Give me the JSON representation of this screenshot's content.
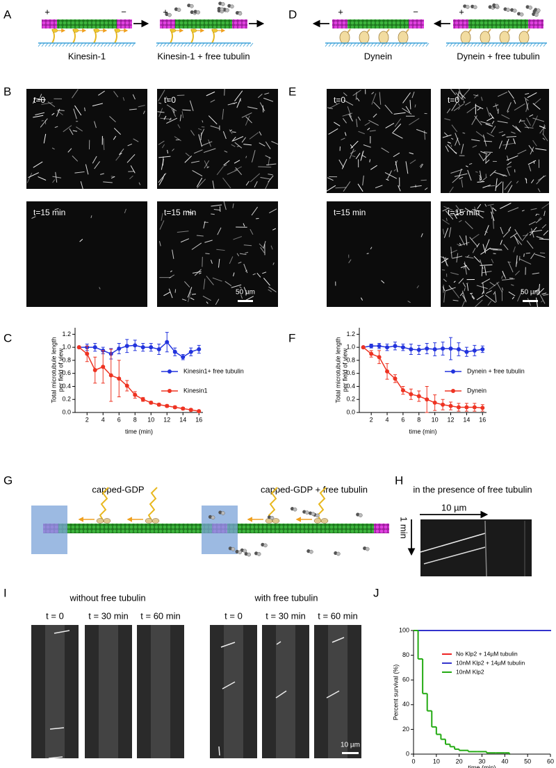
{
  "panel_letters": [
    "A",
    "B",
    "C",
    "D",
    "E",
    "F",
    "G",
    "H",
    "I",
    "J"
  ],
  "plus": "+",
  "minus": "−",
  "panel_a": {
    "labels": [
      "Kinesin-1",
      "Kinesin-1 + free tubulin"
    ]
  },
  "panel_d": {
    "labels": [
      "Dynein",
      "Dynein + free tubulin"
    ]
  },
  "panel_b": {
    "labels": [
      "t=0",
      "t=0",
      "t=15 min",
      "t=15 min"
    ],
    "scale": "50 µm"
  },
  "panel_e": {
    "labels": [
      "t=0",
      "t=0",
      "t=15 min",
      "t=15 min"
    ],
    "scale": "50 µm"
  },
  "panel_g": {
    "titles": [
      "capped-GDP",
      "capped-GDP + free tubulin"
    ]
  },
  "panel_h": {
    "title": "in the presence of free tubulin",
    "scale": "10 µm",
    "time": "1 min"
  },
  "panel_i": {
    "titles": [
      "without free tubulin",
      "with free tubulin"
    ],
    "times": [
      "t = 0",
      "t = 30 min",
      "t = 60 min",
      "t = 0",
      "t = 30 min",
      "t = 60 min"
    ],
    "scale": "10 µm"
  },
  "chart_data": [
    {
      "type": "line",
      "ylabel": [
        "Total microtubule length",
        "per field of view"
      ],
      "xlabel": "time (min)",
      "xlim": [
        0.5,
        16.5
      ],
      "xticks": [
        2,
        4,
        6,
        8,
        10,
        12,
        14,
        16
      ],
      "ylim": [
        0,
        1.3
      ],
      "yticks": [
        {
          "value": 0,
          "label": "0.0"
        },
        0.2,
        0.4,
        0.6,
        0.8,
        {
          "value": 1,
          "label": "1.0"
        },
        1.2
      ],
      "x": [
        1,
        2,
        3,
        4,
        5,
        6,
        7,
        8,
        9,
        10,
        11,
        12,
        13,
        14,
        15,
        16
      ],
      "series": [
        {
          "name": "Kinesin1+ free tubulin",
          "color": "#2233dd",
          "values": [
            1.0,
            1.0,
            1.0,
            0.95,
            0.9,
            0.98,
            1.02,
            1.03,
            1.0,
            1.0,
            0.97,
            1.08,
            0.93,
            0.85,
            0.93,
            0.97
          ],
          "errors": [
            0,
            0.05,
            0.06,
            0.05,
            0.08,
            0.08,
            0.1,
            0.08,
            0.06,
            0.06,
            0.08,
            0.15,
            0.06,
            0.04,
            0.06,
            0.06
          ]
        },
        {
          "name": "Kinesin1",
          "color": "#ee3322",
          "values": [
            1.0,
            0.9,
            0.65,
            0.7,
            0.57,
            0.52,
            0.41,
            0.27,
            0.2,
            0.15,
            0.12,
            0.1,
            0.08,
            0.06,
            0.04,
            0.02
          ],
          "errors": [
            0,
            0.12,
            0.2,
            0.25,
            0.4,
            0.28,
            0.08,
            0.05,
            0.03,
            0.02,
            0.02,
            0.02,
            0.02,
            0.02,
            0.02,
            0.01
          ]
        }
      ]
    },
    {
      "type": "line",
      "ylabel": [
        "Total microtubule length",
        "per field of view"
      ],
      "xlabel": "time (min)",
      "xlim": [
        0.5,
        16.5
      ],
      "xticks": [
        2,
        4,
        6,
        8,
        10,
        12,
        14,
        16
      ],
      "ylim": [
        0,
        1.3
      ],
      "yticks": [
        {
          "value": 0,
          "label": "0.0"
        },
        0.2,
        0.4,
        0.6,
        0.8,
        {
          "value": 1,
          "label": "1.0"
        },
        1.2
      ],
      "x": [
        1,
        2,
        3,
        4,
        5,
        6,
        7,
        8,
        9,
        10,
        11,
        12,
        13,
        14,
        15,
        16
      ],
      "series": [
        {
          "name": "Dynein + free tubulin",
          "color": "#2233dd",
          "values": [
            1.0,
            1.02,
            1.02,
            1.0,
            1.02,
            1.0,
            0.97,
            0.96,
            0.98,
            0.97,
            0.98,
            0.98,
            0.97,
            0.93,
            0.95,
            0.97
          ],
          "errors": [
            0,
            0.03,
            0.04,
            0.05,
            0.06,
            0.05,
            0.08,
            0.07,
            0.08,
            0.1,
            0.1,
            0.17,
            0.1,
            0.07,
            0.08,
            0.05
          ]
        },
        {
          "name": "Dynein",
          "color": "#ee3322",
          "values": [
            1.0,
            0.9,
            0.85,
            0.63,
            0.52,
            0.34,
            0.28,
            0.25,
            0.2,
            0.15,
            0.12,
            0.1,
            0.08,
            0.08,
            0.08,
            0.07
          ],
          "errors": [
            0,
            0.05,
            0.1,
            0.12,
            0.06,
            0.06,
            0.08,
            0.08,
            0.2,
            0.12,
            0.08,
            0.06,
            0.06,
            0.06,
            0.06,
            0.05
          ]
        }
      ]
    },
    {
      "type": "step",
      "ylabel": [
        "Percent survival (%)"
      ],
      "xlabel": "time (min)",
      "xlim": [
        0,
        60
      ],
      "xticks": [
        0,
        10,
        20,
        30,
        40,
        50,
        60
      ],
      "ylim": [
        0,
        100
      ],
      "yticks": [
        0,
        20,
        40,
        60,
        80,
        100
      ],
      "series": [
        {
          "name": "No Klp2 + 14µM tubulin",
          "color": "#ee2222",
          "x": [
            0,
            60
          ],
          "values": [
            100,
            100
          ]
        },
        {
          "name": "10nM Klp2 + 14µM tubulin",
          "color": "#3333cc",
          "x": [
            0,
            60
          ],
          "values": [
            100,
            100
          ]
        },
        {
          "name": "10nM Klp2",
          "color": "#22aa11",
          "x": [
            0,
            2,
            4,
            6,
            8,
            10,
            12,
            14,
            16,
            18,
            20,
            24,
            28,
            32,
            36,
            40,
            42
          ],
          "values": [
            100,
            77,
            49,
            35,
            22,
            16,
            12,
            8,
            6,
            4,
            3,
            2,
            2,
            1,
            1,
            1,
            0
          ]
        }
      ]
    }
  ]
}
